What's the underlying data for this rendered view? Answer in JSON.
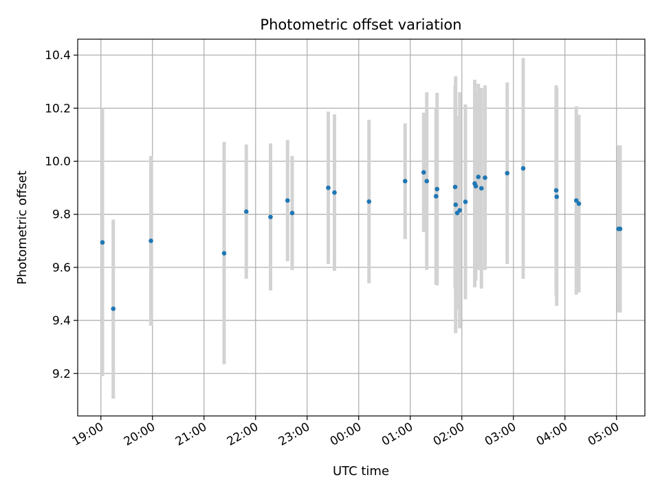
{
  "chart_data": {
    "type": "scatter",
    "title": "Photometric offset variation",
    "xlabel": "UTC time",
    "ylabel": "Photometric offset",
    "xlim": [
      -0.45,
      10.55
    ],
    "ylim": [
      9.04,
      10.46
    ],
    "x_unit": "hours since 19:00 UTC",
    "x_ticks": [
      {
        "value": 0,
        "label": "19:00"
      },
      {
        "value": 1,
        "label": "20:00"
      },
      {
        "value": 2,
        "label": "21:00"
      },
      {
        "value": 3,
        "label": "22:00"
      },
      {
        "value": 4,
        "label": "23:00"
      },
      {
        "value": 5,
        "label": "00:00"
      },
      {
        "value": 6,
        "label": "01:00"
      },
      {
        "value": 7,
        "label": "02:00"
      },
      {
        "value": 8,
        "label": "03:00"
      },
      {
        "value": 9,
        "label": "04:00"
      },
      {
        "value": 10,
        "label": "05:00"
      }
    ],
    "y_ticks": [
      {
        "value": 9.2,
        "label": "9.2"
      },
      {
        "value": 9.4,
        "label": "9.4"
      },
      {
        "value": 9.6,
        "label": "9.6"
      },
      {
        "value": 9.8,
        "label": "9.8"
      },
      {
        "value": 10.0,
        "label": "10.0"
      },
      {
        "value": 10.2,
        "label": "10.2"
      },
      {
        "value": 10.4,
        "label": "10.4"
      }
    ],
    "grid": true,
    "colors": {
      "point": "#1f77b4",
      "errorbar": "#d3d3d3",
      "grid": "#b0b0b0",
      "axes": "#000000"
    },
    "series": [
      {
        "name": "Photometric offset",
        "points": [
          {
            "x": 0.03,
            "y": 9.694,
            "lo": 9.19,
            "hi": 10.2
          },
          {
            "x": 0.24,
            "y": 9.444,
            "lo": 9.105,
            "hi": 9.78
          },
          {
            "x": 0.97,
            "y": 9.7,
            "lo": 9.38,
            "hi": 10.02
          },
          {
            "x": 2.39,
            "y": 9.653,
            "lo": 9.235,
            "hi": 10.073
          },
          {
            "x": 2.82,
            "y": 9.81,
            "lo": 9.557,
            "hi": 10.063
          },
          {
            "x": 3.29,
            "y": 9.79,
            "lo": 9.513,
            "hi": 10.067
          },
          {
            "x": 3.62,
            "y": 9.852,
            "lo": 9.623,
            "hi": 10.08
          },
          {
            "x": 3.71,
            "y": 9.805,
            "lo": 9.59,
            "hi": 10.02
          },
          {
            "x": 4.41,
            "y": 9.9,
            "lo": 9.613,
            "hi": 10.187
          },
          {
            "x": 4.53,
            "y": 9.882,
            "lo": 9.587,
            "hi": 10.177
          },
          {
            "x": 5.2,
            "y": 9.848,
            "lo": 9.54,
            "hi": 10.156
          },
          {
            "x": 5.9,
            "y": 9.925,
            "lo": 9.707,
            "hi": 10.143
          },
          {
            "x": 6.26,
            "y": 9.958,
            "lo": 9.733,
            "hi": 10.183
          },
          {
            "x": 6.32,
            "y": 9.925,
            "lo": 9.59,
            "hi": 10.26
          },
          {
            "x": 6.5,
            "y": 9.868,
            "lo": 9.536,
            "hi": 10.2
          },
          {
            "x": 6.52,
            "y": 9.895,
            "lo": 9.532,
            "hi": 10.258
          },
          {
            "x": 6.87,
            "y": 9.903,
            "lo": 9.52,
            "hi": 10.286
          },
          {
            "x": 6.88,
            "y": 9.836,
            "lo": 9.352,
            "hi": 10.32
          },
          {
            "x": 6.91,
            "y": 9.805,
            "lo": 9.44,
            "hi": 10.17
          },
          {
            "x": 6.96,
            "y": 9.815,
            "lo": 9.37,
            "hi": 10.26
          },
          {
            "x": 7.07,
            "y": 9.847,
            "lo": 9.48,
            "hi": 10.214
          },
          {
            "x": 7.25,
            "y": 9.916,
            "lo": 9.525,
            "hi": 10.307
          },
          {
            "x": 7.27,
            "y": 9.906,
            "lo": 9.55,
            "hi": 10.262
          },
          {
            "x": 7.32,
            "y": 9.941,
            "lo": 9.59,
            "hi": 10.292
          },
          {
            "x": 7.38,
            "y": 9.898,
            "lo": 9.52,
            "hi": 10.276
          },
          {
            "x": 7.45,
            "y": 9.938,
            "lo": 9.59,
            "hi": 10.286
          },
          {
            "x": 7.88,
            "y": 9.955,
            "lo": 9.613,
            "hi": 10.297
          },
          {
            "x": 8.19,
            "y": 9.973,
            "lo": 9.557,
            "hi": 10.389
          },
          {
            "x": 8.83,
            "y": 9.89,
            "lo": 9.494,
            "hi": 10.286
          },
          {
            "x": 8.84,
            "y": 9.866,
            "lo": 9.455,
            "hi": 10.277
          },
          {
            "x": 9.22,
            "y": 9.852,
            "lo": 9.497,
            "hi": 10.207
          },
          {
            "x": 9.27,
            "y": 9.84,
            "lo": 9.505,
            "hi": 10.175
          },
          {
            "x": 10.04,
            "y": 9.745,
            "lo": 9.43,
            "hi": 10.06
          },
          {
            "x": 10.07,
            "y": 9.745,
            "lo": 9.43,
            "hi": 10.06
          }
        ]
      }
    ]
  }
}
